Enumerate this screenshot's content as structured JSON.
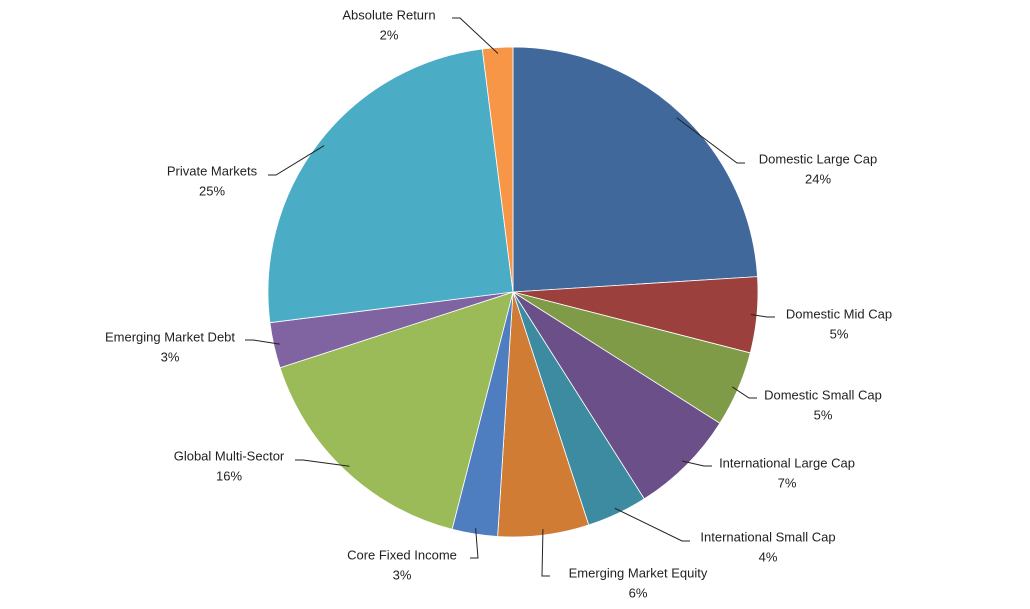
{
  "chart_data": {
    "type": "pie",
    "categories": [
      "Domestic Large Cap",
      "Domestic Mid Cap",
      "Domestic Small Cap",
      "International Large Cap",
      "International Small Cap",
      "Emerging Market Equity",
      "Core Fixed Income",
      "Global Multi-Sector",
      "Emerging Market Debt",
      "Private Markets",
      "Absolute Return"
    ],
    "values": [
      24,
      5,
      5,
      7,
      4,
      6,
      3,
      16,
      3,
      25,
      2
    ],
    "value_labels": [
      "24%",
      "5%",
      "5%",
      "7%",
      "4%",
      "6%",
      "3%",
      "16%",
      "3%",
      "25%",
      "2%"
    ],
    "colors": [
      "#41689b",
      "#9c403d",
      "#7f9b47",
      "#6a4f88",
      "#3d8ba1",
      "#d07c35",
      "#4f7ec0",
      "#9bbb59",
      "#8064a2",
      "#4bacc6",
      "#f79646"
    ]
  }
}
